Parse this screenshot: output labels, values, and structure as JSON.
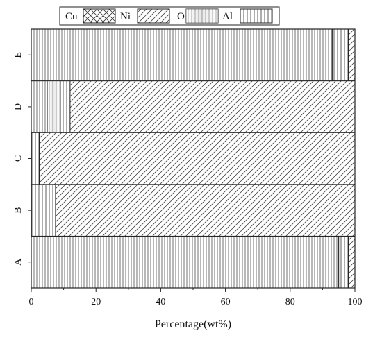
{
  "chart_data": {
    "type": "bar",
    "orientation": "horizontal",
    "stacked": true,
    "title": "",
    "xlabel": "Percentage(wt%)",
    "ylabel": "",
    "xlim": [
      0,
      100
    ],
    "x_ticks": [
      "0",
      "20",
      "40",
      "60",
      "80",
      "100"
    ],
    "categories": [
      "A",
      "B",
      "C",
      "D",
      "E"
    ],
    "series": [
      {
        "name": "Cu",
        "values": [
          95,
          0,
          0,
          5,
          93
        ],
        "pattern": "vertical-lines-dense"
      },
      {
        "name": "Ni",
        "values": [
          0,
          0,
          0,
          4,
          0
        ],
        "pattern": "vertical-lines-gradient"
      },
      {
        "name": "O",
        "values": [
          3,
          7.5,
          2.5,
          3,
          5
        ],
        "pattern": "vertical-lines-sparse"
      },
      {
        "name": "Al",
        "values": [
          2,
          92.5,
          97.5,
          88,
          2
        ],
        "pattern": "diagonal-lines"
      }
    ],
    "legend": {
      "placement": "top",
      "entries": [
        {
          "label": "Cu",
          "pattern": "crosshatch"
        },
        {
          "label": "Ni",
          "pattern": "diagonal-lines"
        },
        {
          "label": "O",
          "pattern": "vertical-lines-gradient"
        },
        {
          "label": "Al",
          "pattern": "vertical-lines-sparse"
        }
      ]
    },
    "grid": false,
    "colors": {
      "stroke": "#222222",
      "background": "#ffffff"
    }
  }
}
